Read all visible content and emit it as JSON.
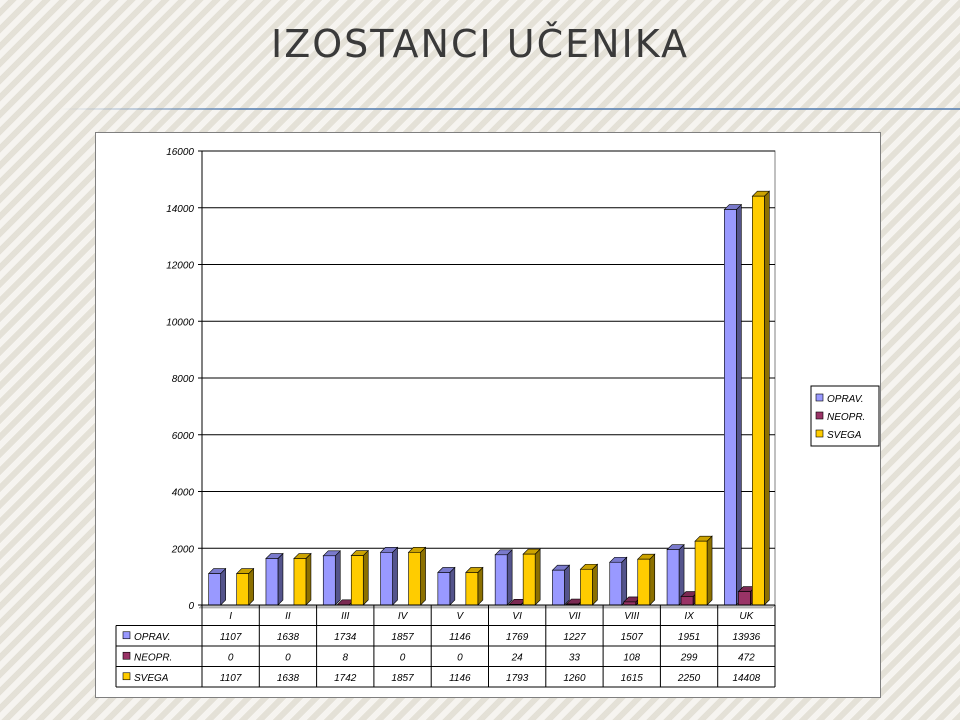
{
  "slide": {
    "title": "Izostanci učenika"
  },
  "colors": {
    "opravdani": "#9999ff",
    "neopravdani": "#993366",
    "svega": "#ffcc00"
  },
  "chart_data": {
    "type": "bar",
    "title": "",
    "xlabel": "",
    "ylabel": "",
    "ylim": [
      0,
      16000
    ],
    "yticks": [
      0,
      2000,
      4000,
      6000,
      8000,
      10000,
      12000,
      14000,
      16000
    ],
    "grid": true,
    "legend_position": "right",
    "categories": [
      "I",
      "II",
      "III",
      "IV",
      "V",
      "VI",
      "VII",
      "VIII",
      "IX",
      "UK"
    ],
    "series": [
      {
        "name": "OPRAV.",
        "values": [
          1107,
          1638,
          1734,
          1857,
          1146,
          1769,
          1227,
          1507,
          1951,
          13936
        ]
      },
      {
        "name": "NEOPR.",
        "values": [
          0,
          0,
          8,
          0,
          0,
          24,
          33,
          108,
          299,
          472
        ]
      },
      {
        "name": "SVEGA",
        "values": [
          1107,
          1638,
          1742,
          1857,
          1146,
          1793,
          1260,
          1615,
          2250,
          14408
        ]
      }
    ],
    "data_table": true
  }
}
